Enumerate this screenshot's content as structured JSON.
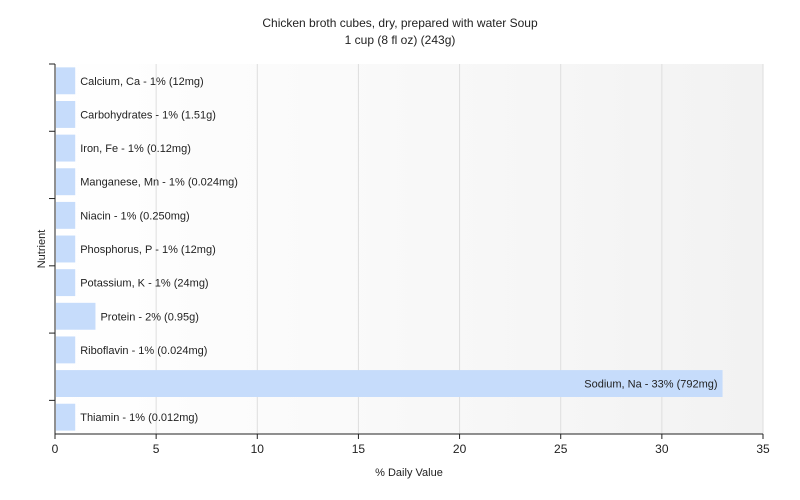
{
  "chart_data": {
    "type": "bar",
    "orientation": "horizontal",
    "title": "Chicken broth cubes, dry, prepared with water Soup",
    "subtitle": "1 cup (8 fl oz) (243g)",
    "xlabel": "% Daily Value",
    "ylabel": "Nutrient",
    "xlim": [
      0,
      35
    ],
    "xticks": [
      0,
      5,
      10,
      15,
      20,
      25,
      30,
      35
    ],
    "grid": true,
    "bar_color": "#c6dcfb",
    "categories": [
      "Calcium, Ca",
      "Carbohydrates",
      "Iron, Fe",
      "Manganese, Mn",
      "Niacin",
      "Phosphorus, P",
      "Potassium, K",
      "Protein",
      "Riboflavin",
      "Sodium, Na",
      "Thiamin"
    ],
    "values": [
      1,
      1,
      1,
      1,
      1,
      1,
      1,
      2,
      1,
      33,
      1
    ],
    "labels": [
      "Calcium, Ca - 1% (12mg)",
      "Carbohydrates - 1% (1.51g)",
      "Iron, Fe - 1% (0.12mg)",
      "Manganese, Mn - 1% (0.024mg)",
      "Niacin - 1% (0.250mg)",
      "Phosphorus, P - 1% (12mg)",
      "Potassium, K - 1% (24mg)",
      "Protein - 2% (0.95g)",
      "Riboflavin - 1% (0.024mg)",
      "Sodium, Na - 33% (792mg)",
      "Thiamin - 1% (0.012mg)"
    ]
  }
}
